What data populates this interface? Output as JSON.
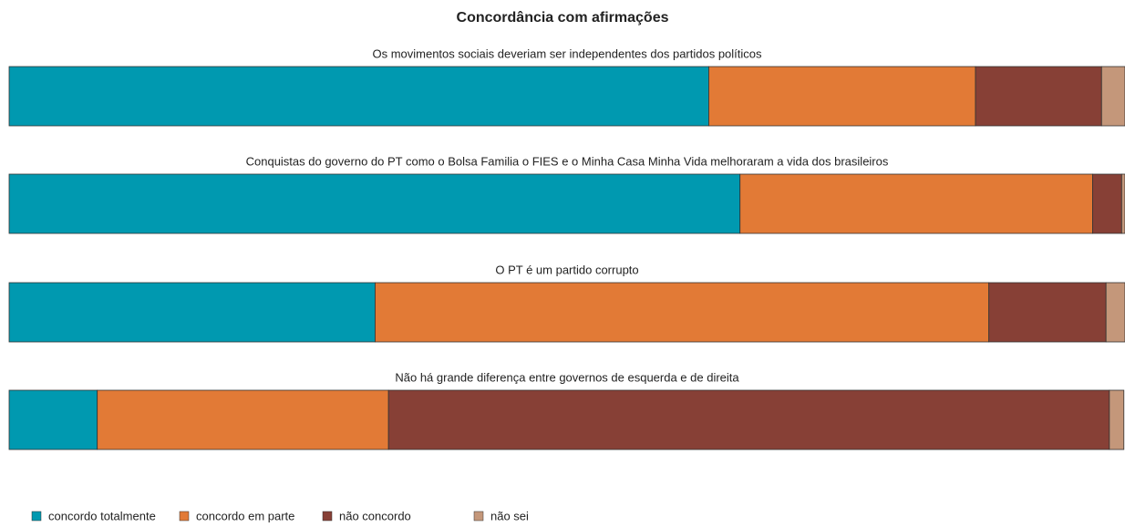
{
  "chart_data": {
    "type": "bar",
    "orientation": "horizontal",
    "stacked": true,
    "title": "Concordância com afirmações",
    "categories": [
      "Os movimentos sociais deveriam ser independentes dos partidos políticos",
      "Conquistas do governo do PT como o Bolsa Familia o FIES e o Minha Casa Minha Vida melhoraram a vida dos brasileiros",
      "O PT é um partido corrupto",
      "Não há grande diferença entre governos de esquerda e de direita"
    ],
    "series": [
      {
        "name": "concordo totalmente",
        "color": "#0099b0",
        "values": [
          62.7,
          65.5,
          32.8,
          7.9
        ]
      },
      {
        "name": "concordo em parte",
        "color": "#e27a36",
        "values": [
          23.9,
          31.6,
          55.0,
          26.1
        ]
      },
      {
        "name": "não concordo",
        "color": "#874036",
        "values": [
          11.3,
          2.6,
          10.5,
          64.6
        ]
      },
      {
        "name": "não sei",
        "color": "#c4977a",
        "values": [
          2.1,
          0.3,
          1.7,
          1.3
        ]
      }
    ],
    "xlim": [
      0,
      100
    ],
    "legend": "bottom-left"
  }
}
